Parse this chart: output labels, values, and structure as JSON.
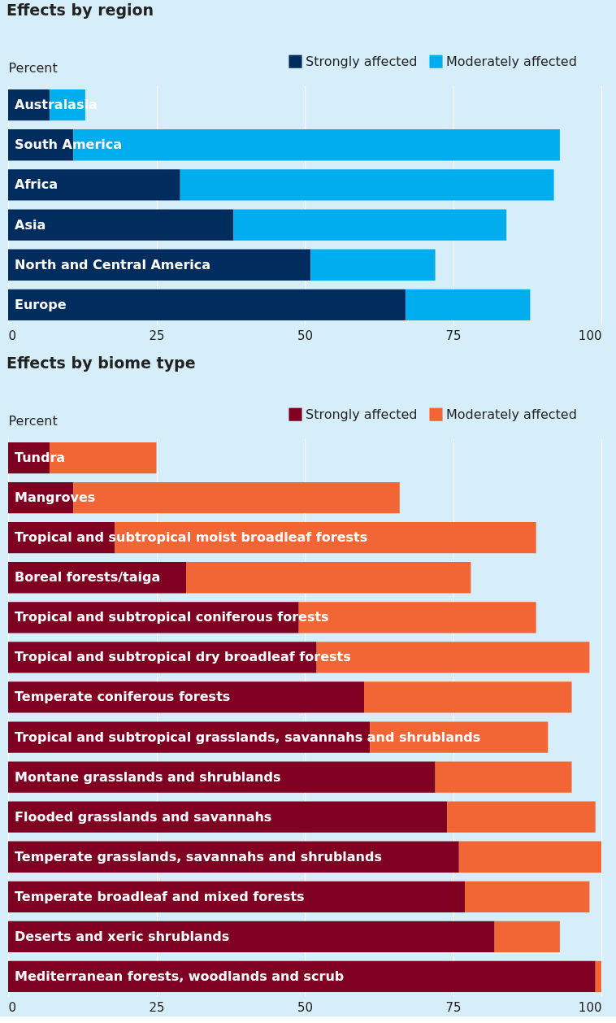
{
  "chart_data": [
    {
      "type": "bar",
      "title": "Effects by region",
      "ylabel": "Percent",
      "orientation": "horizontal",
      "stacked": true,
      "grid": "x",
      "legend": "top right",
      "xlim": [
        0,
        100
      ],
      "xticks": [
        0,
        25,
        50,
        75,
        100
      ],
      "categories": [
        "Australasia",
        "South America",
        "Africa",
        "Asia",
        "North and Central America",
        "Europe"
      ],
      "series": [
        {
          "name": "Strongly affected",
          "color": "#002d5e",
          "values": [
            7,
            11,
            29,
            38,
            51,
            67
          ]
        },
        {
          "name": "Moderately affected",
          "color": "#00aeef",
          "values": [
            6,
            82,
            63,
            46,
            21,
            21
          ]
        }
      ]
    },
    {
      "type": "bar",
      "title": "Effects by biome type",
      "ylabel": "Percent",
      "orientation": "horizontal",
      "stacked": true,
      "grid": "x",
      "legend": "top right",
      "xlim": [
        0,
        100
      ],
      "xticks": [
        0,
        25,
        50,
        75,
        100
      ],
      "categories": [
        "Tundra",
        "Mangroves",
        "Tropical and subtropical moist broadleaf forests",
        "Boreal forests/taiga",
        "Tropical and subtropical coniferous forests",
        "Tropical and subtropical dry broadleaf forests",
        "Temperate coniferous forests",
        "Tropical and subtropical grasslands, savannahs and shrublands",
        "Montane grasslands and shrublands",
        "Flooded grasslands and savannahs",
        "Temperate grasslands, savannahs and shrublands",
        "Temperate broadleaf and mixed forests",
        "Deserts and xeric shrublands",
        "Mediterranean forests, woodlands and scrub"
      ],
      "series": [
        {
          "name": "Strongly affected",
          "color": "#800021",
          "values": [
            7,
            11,
            18,
            30,
            49,
            52,
            60,
            61,
            72,
            74,
            76,
            77,
            82,
            99
          ]
        },
        {
          "name": "Moderately affected",
          "color": "#f26635",
          "values": [
            18,
            55,
            71,
            48,
            40,
            46,
            35,
            30,
            23,
            25,
            24,
            21,
            11,
            1
          ]
        }
      ]
    }
  ]
}
